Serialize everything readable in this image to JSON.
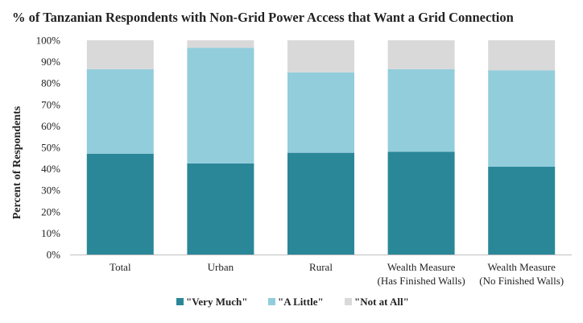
{
  "chart_data": {
    "type": "bar",
    "stacked": true,
    "title": "% of Tanzanian Respondents with Non-Grid Power Access that Want a Grid Connection",
    "xlabel": "",
    "ylabel": "Percent of Respondents",
    "ylim": [
      0,
      100
    ],
    "yticks": [
      "0%",
      "10%",
      "20%",
      "30%",
      "40%",
      "50%",
      "60%",
      "70%",
      "80%",
      "90%",
      "100%"
    ],
    "categories": [
      [
        "Total"
      ],
      [
        "Urban"
      ],
      [
        "Rural"
      ],
      [
        "Wealth Measure",
        "(Has Finished Walls)"
      ],
      [
        "Wealth Measure",
        "(No Finished Walls)"
      ]
    ],
    "series": [
      {
        "name": "\"Very Much\"",
        "color": "#2a8798",
        "values": [
          47,
          42.5,
          47.5,
          48,
          41
        ]
      },
      {
        "name": "\"A Little\"",
        "color": "#92cddc",
        "values": [
          39.5,
          54,
          37.5,
          38.5,
          45
        ]
      },
      {
        "name": "\"Not at All\"",
        "color": "#d9d9d9",
        "values": [
          13.5,
          3.5,
          15,
          13.5,
          14
        ]
      }
    ],
    "grid": false,
    "legend_position": "bottom"
  }
}
